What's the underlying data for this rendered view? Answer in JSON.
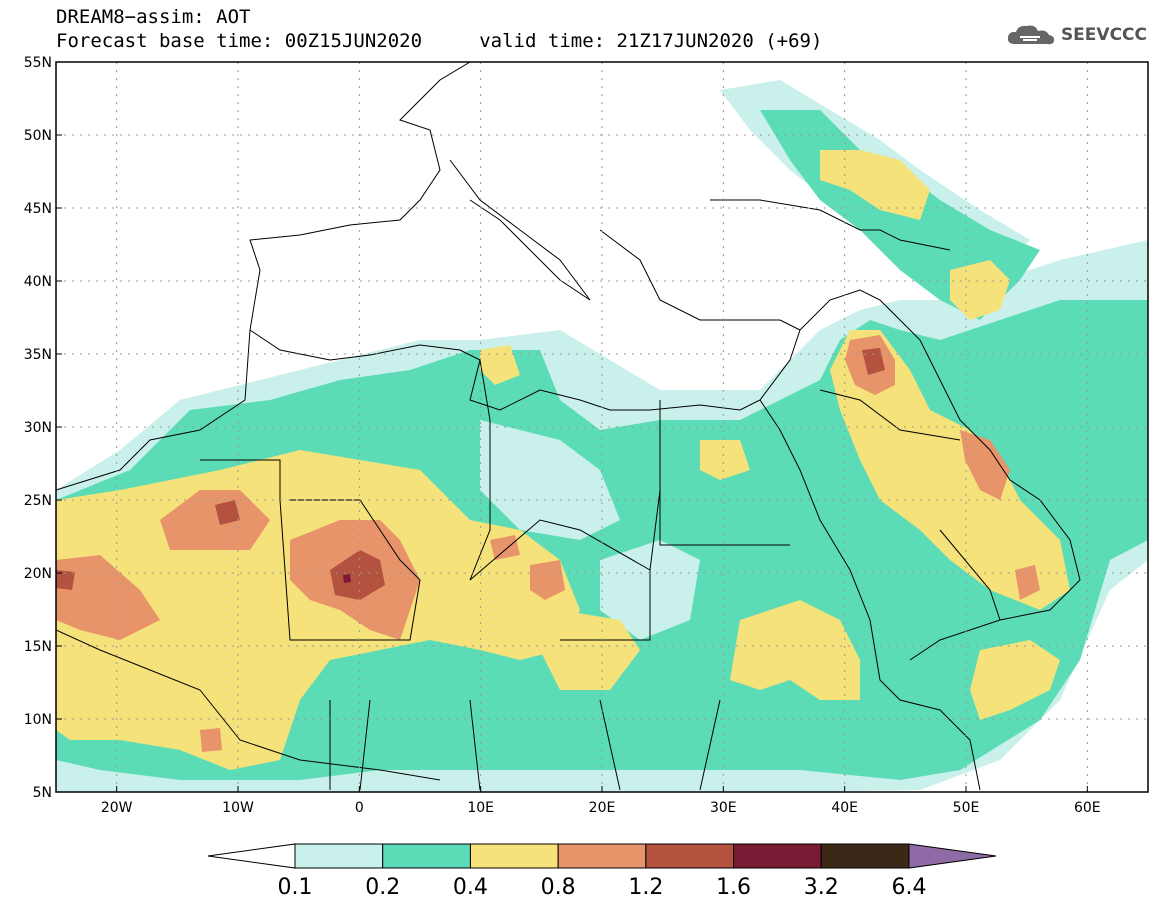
{
  "title": {
    "line1": "DREAM8−assim: AOT",
    "line2": "Forecast base time: 00Z15JUN2020     valid time: 21Z17JUN2020 (+69)"
  },
  "logo": {
    "text": "SEEVCCC",
    "icon": "cloud-icon"
  },
  "map": {
    "type": "filled-contour",
    "lon_range": [
      -25,
      65
    ],
    "lat_range": [
      5,
      55
    ],
    "x_ticks": [
      {
        "lon": -20,
        "label": "20W"
      },
      {
        "lon": -10,
        "label": "10W"
      },
      {
        "lon": 0,
        "label": "0"
      },
      {
        "lon": 10,
        "label": "10E"
      },
      {
        "lon": 20,
        "label": "20E"
      },
      {
        "lon": 30,
        "label": "30E"
      },
      {
        "lon": 40,
        "label": "40E"
      },
      {
        "lon": 50,
        "label": "50E"
      },
      {
        "lon": 60,
        "label": "60E"
      }
    ],
    "y_ticks": [
      {
        "lat": 5,
        "label": "5N"
      },
      {
        "lat": 10,
        "label": "10N"
      },
      {
        "lat": 15,
        "label": "15N"
      },
      {
        "lat": 20,
        "label": "20N"
      },
      {
        "lat": 25,
        "label": "25N"
      },
      {
        "lat": 30,
        "label": "30N"
      },
      {
        "lat": 35,
        "label": "35N"
      },
      {
        "lat": 40,
        "label": "40N"
      },
      {
        "lat": 45,
        "label": "45N"
      },
      {
        "lat": 50,
        "label": "50N"
      },
      {
        "lat": 55,
        "label": "55N"
      }
    ],
    "grid": "dotted"
  },
  "colorbar": {
    "boundaries": [
      "0.1",
      "0.2",
      "0.4",
      "0.8",
      "1.2",
      "1.6",
      "3.2",
      "6.4"
    ],
    "colors": [
      "#c9f0ea",
      "#5cdcb6",
      "#f5e27a",
      "#e8946a",
      "#b2523f",
      "#7a1a34",
      "#3c2817",
      "#8e6aa6"
    ]
  }
}
